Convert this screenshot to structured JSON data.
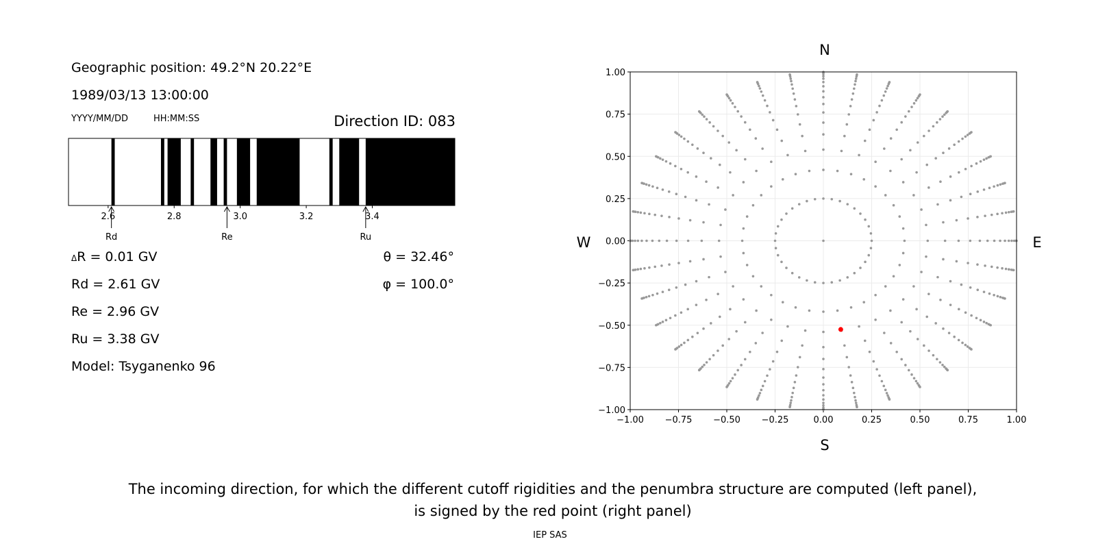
{
  "left_panel": {
    "geo_position": "Geographic position: 49.2°N 20.22°E",
    "datetime": "1989/03/13 13:00:00",
    "date_format": "YYYY/MM/DD",
    "time_format": "HH:MM:SS",
    "direction_id": "Direction ID: 083",
    "delta_r_symbol": "Δ",
    "delta_r": "R = 0.01 GV",
    "rd": "Rd = 2.61 GV",
    "re": "Re = 2.96 GV",
    "ru": "Ru = 3.38 GV",
    "model": "Model: Tsyganenko 96",
    "theta": "θ = 32.46°",
    "phi": "φ = 100.0°"
  },
  "caption": {
    "line1": "The incoming direction, for which the different cutoff rigidities and the penumbra structure are computed (left panel),",
    "line2": "is signed by the red point (right panel)",
    "footer": "IEP SAS"
  },
  "chart_data": [
    {
      "type": "penumbra-bar",
      "xlim": [
        2.48,
        3.65
      ],
      "xticks": [
        "2.6",
        "2.8",
        "3.0",
        "3.2",
        "3.4"
      ],
      "xtick_values": [
        2.6,
        2.8,
        3.0,
        3.2,
        3.4
      ],
      "background_color": "#ffffff",
      "band_color": "#000000",
      "black_bands": [
        [
          2.61,
          2.62
        ],
        [
          2.76,
          2.77
        ],
        [
          2.78,
          2.82
        ],
        [
          2.85,
          2.86
        ],
        [
          2.91,
          2.93
        ],
        [
          2.95,
          2.96
        ],
        [
          2.99,
          3.03
        ],
        [
          3.05,
          3.18
        ],
        [
          3.27,
          3.28
        ],
        [
          3.3,
          3.36
        ],
        [
          3.38,
          3.65
        ]
      ],
      "markers": [
        {
          "label": "Rd",
          "value": 2.61
        },
        {
          "label": "Re",
          "value": 2.96
        },
        {
          "label": "Ru",
          "value": 3.38
        }
      ]
    },
    {
      "type": "scatter",
      "xlim": [
        -1.0,
        1.0
      ],
      "ylim": [
        -1.0,
        1.0
      ],
      "xticks": [
        "−1.00",
        "−0.75",
        "−0.50",
        "−0.25",
        "0.00",
        "0.25",
        "0.50",
        "0.75",
        "1.00"
      ],
      "yticks": [
        "−1.00",
        "−0.75",
        "−0.50",
        "−0.25",
        "0.00",
        "0.25",
        "0.50",
        "0.75",
        "1.00"
      ],
      "tick_values": [
        -1.0,
        -0.75,
        -0.5,
        -0.25,
        0,
        0.25,
        0.5,
        0.75,
        1.0
      ],
      "grid": true,
      "compass": {
        "north": "N",
        "south": "S",
        "west": "W",
        "east": "E"
      },
      "grid_points": {
        "center": [
          0,
          0
        ],
        "azimuth_step_deg": 10,
        "radii": [
          0.25,
          0.42,
          0.54,
          0.63,
          0.7,
          0.76,
          0.81,
          0.85,
          0.885,
          0.915,
          0.94,
          0.96,
          0.975,
          0.988,
          0.996,
          1.0
        ],
        "color": "#999999"
      },
      "selected_point": {
        "x": 0.09,
        "y": -0.525,
        "color": "#ff0000"
      }
    }
  ]
}
